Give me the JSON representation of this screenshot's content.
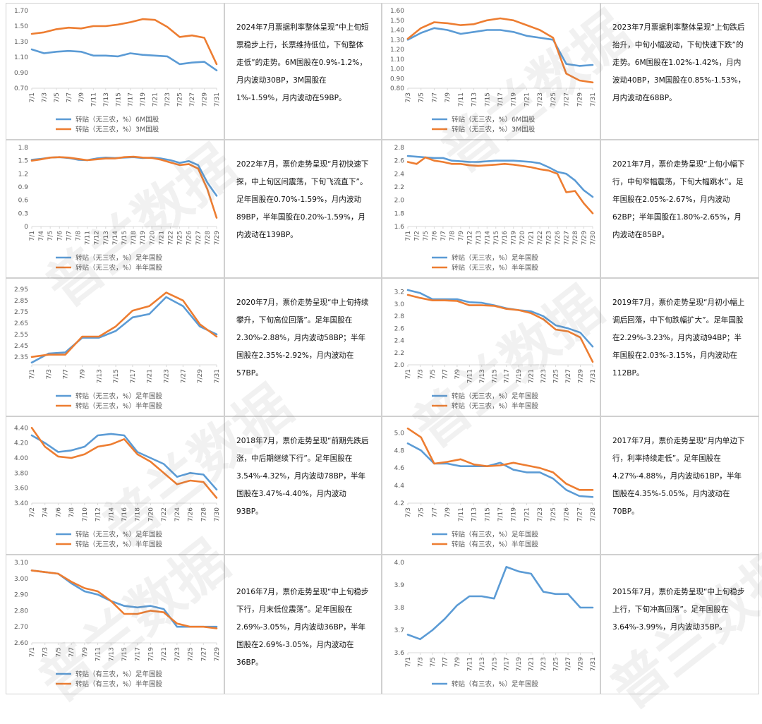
{
  "watermark": "普兰数据",
  "colors": {
    "blue": "#5b9bd5",
    "orange": "#ed7d31",
    "axis": "#d9d9d9",
    "text": "#595959"
  },
  "chart_data": [
    {
      "type": "line",
      "x": [
        "7/1",
        "7/3",
        "7/5",
        "7/7",
        "7/9",
        "7/11",
        "7/13",
        "7/15",
        "7/17",
        "7/19",
        "7/21",
        "7/23",
        "7/25",
        "7/27",
        "7/29",
        "7/31"
      ],
      "yticks": [
        "0.70",
        "0.90",
        "1.10",
        "1.30",
        "1.50",
        "1.70"
      ],
      "ylim": [
        0.7,
        1.7
      ],
      "series": [
        {
          "name": "转贴（无三农，%）6M国股",
          "color": "blue",
          "values": [
            1.2,
            1.15,
            1.17,
            1.18,
            1.17,
            1.12,
            1.12,
            1.11,
            1.15,
            1.13,
            1.12,
            1.11,
            1.01,
            1.03,
            1.04,
            0.93
          ]
        },
        {
          "name": "转贴（无三农，%）3M国股",
          "color": "orange",
          "values": [
            1.4,
            1.42,
            1.46,
            1.48,
            1.47,
            1.5,
            1.5,
            1.52,
            1.55,
            1.59,
            1.58,
            1.49,
            1.36,
            1.38,
            1.35,
            1.01
          ]
        }
      ],
      "text": "2024年7月票据利率整体呈现“中上旬短票稳步上行，长票维持低位，下旬整体走低”的走势。6M国股在0.9%-1.2%，月内波动30BP，3M国股在1%-1.59%，月内波动在59BP。"
    },
    {
      "type": "line",
      "x": [
        "7/3",
        "7/5",
        "7/7",
        "7/9",
        "7/11",
        "7/13",
        "7/15",
        "7/17",
        "7/19",
        "7/21",
        "7/23",
        "7/25",
        "7/27",
        "7/29",
        "7/31"
      ],
      "yticks": [
        "0.80",
        "0.90",
        "1.00",
        "1.10",
        "1.20",
        "1.30",
        "1.40",
        "1.50",
        "1.60"
      ],
      "ylim": [
        0.8,
        1.6
      ],
      "series": [
        {
          "name": "转贴（无三农，%）6M国股",
          "color": "blue",
          "values": [
            1.3,
            1.37,
            1.42,
            1.4,
            1.36,
            1.38,
            1.4,
            1.4,
            1.38,
            1.34,
            1.32,
            1.3,
            1.05,
            1.03,
            1.04
          ]
        },
        {
          "name": "转贴（无三农，%）3M国股",
          "color": "orange",
          "values": [
            1.31,
            1.42,
            1.48,
            1.47,
            1.45,
            1.46,
            1.5,
            1.52,
            1.5,
            1.45,
            1.4,
            1.32,
            0.95,
            0.88,
            0.86
          ]
        }
      ],
      "text": "2023年7月票据利率整体呈现“上旬跌后抬升，中旬小幅波动，下旬快速下跌”的走势。6M国股在1.02%-1.42%，月内波动40BP，3M国股在0.85%-1.53%，月内波动在68BP。"
    },
    {
      "type": "line",
      "x": [
        "7/1",
        "7/4",
        "7/5",
        "7/6",
        "7/7",
        "7/8",
        "7/11",
        "7/12",
        "7/13",
        "7/14",
        "7/15",
        "7/18",
        "7/19",
        "7/20",
        "7/21",
        "7/22",
        "7/25",
        "7/26",
        "7/27",
        "7/28",
        "7/29"
      ],
      "yticks": [
        "0",
        "0.3",
        "0.6",
        "0.9",
        "1.2",
        "1.5",
        "1.8"
      ],
      "ylim": [
        0,
        1.8
      ],
      "series": [
        {
          "name": "转贴（无三农，%）足年国股",
          "color": "blue",
          "values": [
            1.52,
            1.54,
            1.57,
            1.58,
            1.56,
            1.52,
            1.51,
            1.55,
            1.57,
            1.56,
            1.57,
            1.58,
            1.56,
            1.57,
            1.55,
            1.51,
            1.45,
            1.49,
            1.4,
            1.0,
            0.7
          ]
        },
        {
          "name": "转贴（无三农，%）半年国股",
          "color": "orange",
          "values": [
            1.5,
            1.53,
            1.57,
            1.58,
            1.57,
            1.54,
            1.51,
            1.53,
            1.55,
            1.55,
            1.58,
            1.59,
            1.57,
            1.56,
            1.52,
            1.46,
            1.4,
            1.42,
            1.32,
            0.85,
            0.2
          ]
        }
      ],
      "text": "2022年7月，票价走势呈现“月初快速下探，中上旬区间震荡，下旬飞流直下”。足年国股在0.70%-1.59%，月内波动89BP，半年国股在0.20%-1.59%，月内波动在139BP。"
    },
    {
      "type": "line",
      "x": [
        "7/1",
        "7/2",
        "7/5",
        "7/6",
        "7/7",
        "7/8",
        "7/9",
        "7/12",
        "7/13",
        "7/14",
        "7/15",
        "7/16",
        "7/19",
        "7/20",
        "7/21",
        "7/22",
        "7/23",
        "7/26",
        "7/27",
        "7/28",
        "7/29",
        "7/30"
      ],
      "yticks": [
        "1.6",
        "1.8",
        "2.0",
        "2.2",
        "2.4",
        "2.6",
        "2.8"
      ],
      "ylim": [
        1.6,
        2.8
      ],
      "series": [
        {
          "name": "转贴（无三农，%）足年国股",
          "color": "blue",
          "values": [
            2.67,
            2.66,
            2.65,
            2.64,
            2.64,
            2.6,
            2.59,
            2.58,
            2.58,
            2.59,
            2.6,
            2.6,
            2.6,
            2.59,
            2.58,
            2.56,
            2.5,
            2.43,
            2.4,
            2.3,
            2.15,
            2.05
          ]
        },
        {
          "name": "转贴（无三农，%）半年国股",
          "color": "orange",
          "values": [
            2.58,
            2.55,
            2.65,
            2.6,
            2.58,
            2.55,
            2.55,
            2.53,
            2.52,
            2.53,
            2.54,
            2.55,
            2.54,
            2.52,
            2.5,
            2.47,
            2.45,
            2.4,
            2.12,
            2.14,
            1.95,
            1.8
          ]
        }
      ],
      "text": "2021年7月，票价走势呈现“上旬小幅下行，中旬窄幅震荡，下旬大幅跳水”。足年国股在2.05%-2.67%，月内波动62BP；半年国股在1.80%-2.65%，月内波动在85BP。"
    },
    {
      "type": "line",
      "x": [
        "7/1",
        "7/3",
        "7/7",
        "7/9",
        "7/13",
        "7/15",
        "7/17",
        "7/21",
        "7/23",
        "7/27",
        "7/29",
        "7/31"
      ],
      "yticks": [
        "2.35",
        "2.45",
        "2.55",
        "2.65",
        "2.75",
        "2.85",
        "2.95"
      ],
      "ylim": [
        2.28,
        2.98
      ],
      "series": [
        {
          "name": "转贴（无三农，%）足年国股",
          "color": "blue",
          "values": [
            2.3,
            2.38,
            2.39,
            2.52,
            2.52,
            2.58,
            2.7,
            2.73,
            2.88,
            2.8,
            2.62,
            2.55
          ]
        },
        {
          "name": "转贴（无三农，%）半年国股",
          "color": "orange",
          "values": [
            2.35,
            2.37,
            2.37,
            2.53,
            2.53,
            2.62,
            2.76,
            2.8,
            2.92,
            2.85,
            2.64,
            2.53
          ]
        }
      ],
      "text": "2020年7月，票价走势呈现“中上旬持续攀升，下旬高位回落”。足年国股在2.30%-2.88%，月内波动58BP；半年国股在2.35%-2.92%，月内波动在57BP。"
    },
    {
      "type": "line",
      "x": [
        "7/1",
        "7/3",
        "7/5",
        "7/7",
        "7/9",
        "7/11",
        "7/13",
        "7/15",
        "7/17",
        "7/19",
        "7/21",
        "7/23",
        "7/25",
        "7/27",
        "7/29",
        "7/31"
      ],
      "yticks": [
        "2.0",
        "2.2",
        "2.4",
        "2.6",
        "2.8",
        "3.0",
        "3.2"
      ],
      "ylim": [
        2.0,
        3.3
      ],
      "series": [
        {
          "name": "转贴（无三农，%）足年国股",
          "color": "blue",
          "values": [
            3.23,
            3.18,
            3.08,
            3.08,
            3.08,
            3.03,
            3.02,
            2.98,
            2.93,
            2.9,
            2.88,
            2.8,
            2.65,
            2.6,
            2.53,
            2.3
          ]
        },
        {
          "name": "转贴（无三农，%）半年国股",
          "color": "orange",
          "values": [
            3.15,
            3.1,
            3.06,
            3.06,
            3.05,
            2.98,
            2.98,
            2.97,
            2.92,
            2.9,
            2.85,
            2.75,
            2.58,
            2.55,
            2.45,
            2.05
          ]
        }
      ],
      "text": "2019年7月，票价走势呈现“月初小幅上调后回落，中下旬跌幅扩大”。足年国股在2.29%-3.23%，月内波动94BP；半年国股在2.03%-3.15%，月内波动在112BP。"
    },
    {
      "type": "line",
      "x": [
        "7/2",
        "7/4",
        "7/6",
        "7/8",
        "7/10",
        "7/12",
        "7/14",
        "7/16",
        "7/18",
        "7/20",
        "7/22",
        "7/24",
        "7/26",
        "7/28",
        "7/30"
      ],
      "yticks": [
        "3.40",
        "3.60",
        "3.80",
        "4.00",
        "4.20",
        "4.40"
      ],
      "ylim": [
        3.4,
        4.45
      ],
      "series": [
        {
          "name": "转贴（无三农，%）足年国股",
          "color": "blue",
          "values": [
            4.3,
            4.2,
            4.08,
            4.1,
            4.15,
            4.3,
            4.32,
            4.3,
            4.08,
            4.0,
            3.92,
            3.75,
            3.8,
            3.78,
            3.58
          ]
        },
        {
          "name": "转贴（无三农，%）半年国股",
          "color": "orange",
          "values": [
            4.4,
            4.15,
            4.02,
            4.0,
            4.05,
            4.15,
            4.18,
            4.25,
            4.05,
            3.95,
            3.8,
            3.65,
            3.7,
            3.68,
            3.47
          ]
        }
      ],
      "text": "2018年7月，票价走势呈现“前期先跌后涨，中后期继续下行”。足年国股在3.54%-4.32%，月内波动78BP，半年国股在3.47%-4.40%，月内波动93BP。"
    },
    {
      "type": "line",
      "x": [
        "7/3",
        "7/5",
        "7/7",
        "7/9",
        "7/11",
        "7/13",
        "7/15",
        "7/17",
        "7/19",
        "7/21",
        "7/23",
        "7/25",
        "7/26",
        "7/27",
        "7/28"
      ],
      "yticks": [
        "4.2",
        "4.4",
        "4.6",
        "4.8",
        "5.0"
      ],
      "ylim": [
        4.2,
        5.1
      ],
      "series": [
        {
          "name": "转贴（有三农，%）足年国股",
          "color": "blue",
          "values": [
            4.88,
            4.8,
            4.65,
            4.65,
            4.62,
            4.62,
            4.62,
            4.66,
            4.58,
            4.55,
            4.55,
            4.48,
            4.35,
            4.28,
            4.27
          ]
        },
        {
          "name": "转贴（有三农，%）半年国股",
          "color": "orange",
          "values": [
            5.05,
            4.95,
            4.65,
            4.67,
            4.7,
            4.64,
            4.62,
            4.63,
            4.66,
            4.63,
            4.6,
            4.55,
            4.42,
            4.35,
            4.35
          ]
        }
      ],
      "text": "2017年7月，票价走势呈现“月内单边下行，利率持续走低”。足年国股在4.27%-4.88%，月内波动61BP，半年国股在4.35%-5.05%，月内波动在70BP。"
    },
    {
      "type": "line",
      "x": [
        "7/1",
        "7/3",
        "7/5",
        "7/7",
        "7/9",
        "7/11",
        "7/13",
        "7/15",
        "7/17",
        "7/19",
        "7/21",
        "7/23",
        "7/25",
        "7/27",
        "7/29"
      ],
      "yticks": [
        "2.60",
        "2.70",
        "2.80",
        "2.90",
        "3.00",
        "3.10"
      ],
      "ylim": [
        2.6,
        3.1
      ],
      "series": [
        {
          "name": "转贴（有三农，%）足年国股",
          "color": "blue",
          "values": [
            3.05,
            3.04,
            3.03,
            2.97,
            2.92,
            2.9,
            2.86,
            2.83,
            2.82,
            2.83,
            2.81,
            2.7,
            2.7,
            2.7,
            2.7
          ]
        },
        {
          "name": "转贴（有三农，%）半年国股",
          "color": "orange",
          "values": [
            3.05,
            3.04,
            3.03,
            2.98,
            2.94,
            2.92,
            2.86,
            2.78,
            2.78,
            2.8,
            2.79,
            2.72,
            2.7,
            2.7,
            2.69
          ]
        }
      ],
      "text": "2016年7月，票价走势呈现“中上旬稳步下行，月末低位震荡”。足年国股在2.69%-3.05%，月内波动36BP，半年国股在2.69%-3.05%，月内波动在36BP。"
    },
    {
      "type": "line",
      "x": [
        "7/1",
        "7/3",
        "7/5",
        "7/7",
        "7/9",
        "7/11",
        "7/13",
        "7/15",
        "7/17",
        "7/19",
        "7/21",
        "7/23",
        "7/25",
        "7/27",
        "7/29",
        "7/31"
      ],
      "yticks": [
        "3.6",
        "3.7",
        "3.8",
        "3.9",
        "4.0"
      ],
      "ylim": [
        3.6,
        4.0
      ],
      "series": [
        {
          "name": "转贴（有三农，%）足年国股",
          "color": "blue",
          "values": [
            3.68,
            3.66,
            3.7,
            3.75,
            3.81,
            3.85,
            3.85,
            3.84,
            3.98,
            3.96,
            3.95,
            3.87,
            3.86,
            3.86,
            3.8,
            3.8
          ]
        }
      ],
      "text": "2015年7月，票价走势呈现“中上旬稳步上行，下旬冲高回落”。足年国股在3.64%-3.99%，月内波动35BP。"
    }
  ]
}
